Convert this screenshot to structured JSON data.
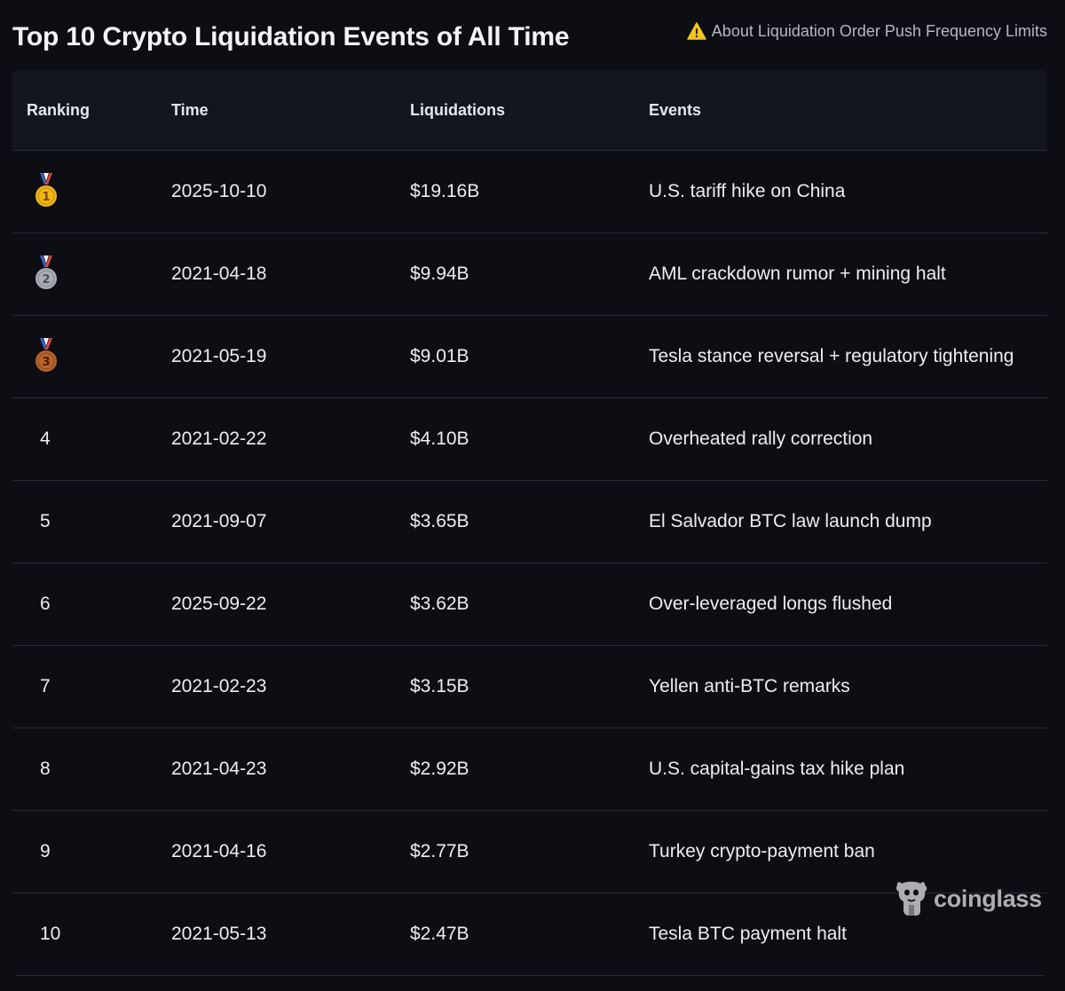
{
  "header": {
    "title": "Top 10 Crypto Liquidation Events of All Time",
    "notice_icon": "warning-icon",
    "notice_text": "About Liquidation Order Push Frequency Limits"
  },
  "table": {
    "columns": [
      "Ranking",
      "Time",
      "Liquidations",
      "Events"
    ],
    "rows": [
      {
        "rank": "1",
        "medal": "gold",
        "time": "2025-10-10",
        "liquidations": "$19.16B",
        "event": "U.S. tariff hike on China"
      },
      {
        "rank": "2",
        "medal": "silver",
        "time": "2021-04-18",
        "liquidations": "$9.94B",
        "event": "AML crackdown rumor + mining halt"
      },
      {
        "rank": "3",
        "medal": "bronze",
        "time": "2021-05-19",
        "liquidations": "$9.01B",
        "event": "Tesla stance reversal + regulatory tightening"
      },
      {
        "rank": "4",
        "time": "2021-02-22",
        "liquidations": "$4.10B",
        "event": "Overheated rally correction"
      },
      {
        "rank": "5",
        "time": "2021-09-07",
        "liquidations": "$3.65B",
        "event": "El Salvador BTC law launch dump"
      },
      {
        "rank": "6",
        "time": "2025-09-22",
        "liquidations": "$3.62B",
        "event": "Over-leveraged longs flushed"
      },
      {
        "rank": "7",
        "time": "2021-02-23",
        "liquidations": "$3.15B",
        "event": "Yellen anti-BTC remarks"
      },
      {
        "rank": "8",
        "time": "2021-04-23",
        "liquidations": "$2.92B",
        "event": "U.S. capital-gains tax hike plan"
      },
      {
        "rank": "9",
        "time": "2021-04-16",
        "liquidations": "$2.77B",
        "event": "Turkey crypto-payment ban"
      },
      {
        "rank": "10",
        "time": "2021-05-13",
        "liquidations": "$2.47B",
        "event": "Tesla BTC payment halt"
      }
    ]
  },
  "watermark": {
    "text": "coinglass",
    "icon": "coinglass-logo-icon"
  },
  "colors": {
    "background": "#0d0e13",
    "header_bg": "#14161d",
    "divider": "#282b33",
    "text": "#eceef2",
    "muted": "#b4b8c2",
    "warning": "#f5c518",
    "gold": "#f3b61a",
    "silver": "#a9adb4",
    "bronze": "#b8642c",
    "ribbon_blue": "#3c62c7",
    "ribbon_red": "#d8443a"
  }
}
